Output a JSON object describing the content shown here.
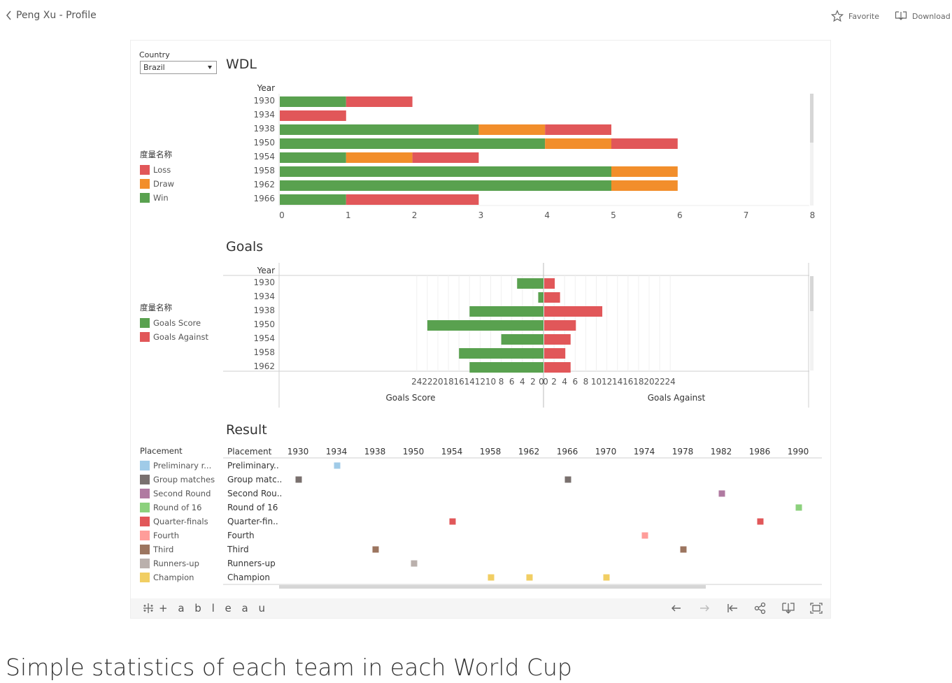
{
  "header": {
    "back_label": "Peng Xu - Profile",
    "favorite_label": "Favorite",
    "download_label": "Download"
  },
  "page_title": "Simple statistics of each team in each World Cup",
  "filter": {
    "label": "Country",
    "value": "Brazil"
  },
  "legends": {
    "wdl": {
      "title": "度量名称",
      "items": [
        {
          "label": "Loss",
          "color": "#e15759"
        },
        {
          "label": "Draw",
          "color": "#f28e2b"
        },
        {
          "label": "Win",
          "color": "#59a14f"
        }
      ]
    },
    "goals": {
      "title": "度量名称",
      "items": [
        {
          "label": "Goals Score",
          "color": "#59a14f"
        },
        {
          "label": "Goals Against",
          "color": "#e15759"
        }
      ]
    },
    "placement": {
      "title": "Placement",
      "items": [
        {
          "label": "Preliminary r...",
          "color": "#a0cbe8"
        },
        {
          "label": "Group matches",
          "color": "#79706e"
        },
        {
          "label": "Second Round",
          "color": "#b07aa1"
        },
        {
          "label": "Round of 16",
          "color": "#8cd17d"
        },
        {
          "label": "Quarter-finals",
          "color": "#e15759"
        },
        {
          "label": "Fourth",
          "color": "#ff9d9a"
        },
        {
          "label": "Third",
          "color": "#9c755f"
        },
        {
          "label": "Runners-up",
          "color": "#bab0ac"
        },
        {
          "label": "Champion",
          "color": "#f1ce63"
        }
      ]
    }
  },
  "toolbar": {
    "logo_text": "+ a b l e a u"
  },
  "chart_data": [
    {
      "type": "bar",
      "title": "WDL",
      "orientation": "horizontal-stacked",
      "y_header": "Year",
      "categories": [
        "1930",
        "1934",
        "1938",
        "1950",
        "1954",
        "1958",
        "1962",
        "1966"
      ],
      "series": [
        {
          "name": "Win",
          "values": [
            1,
            0,
            3,
            4,
            1,
            5,
            5,
            1
          ],
          "color": "#59a14f"
        },
        {
          "name": "Draw",
          "values": [
            0,
            0,
            1,
            1,
            1,
            1,
            1,
            0
          ],
          "color": "#f28e2b"
        },
        {
          "name": "Loss",
          "values": [
            1,
            1,
            1,
            1,
            1,
            0,
            0,
            2
          ],
          "color": "#e15759"
        }
      ],
      "xlim": [
        0,
        8
      ],
      "xticks": [
        "0",
        "1",
        "2",
        "3",
        "4",
        "5",
        "6",
        "7",
        "8"
      ]
    },
    {
      "type": "bar",
      "title": "Goals",
      "orientation": "horizontal-diverging",
      "y_header": "Year",
      "categories": [
        "1930",
        "1934",
        "1938",
        "1950",
        "1954",
        "1958",
        "1962"
      ],
      "series": [
        {
          "name": "Goals Score",
          "values": [
            5,
            1,
            14,
            22,
            8,
            16,
            14
          ],
          "color": "#59a14f"
        },
        {
          "name": "Goals Against",
          "values": [
            2,
            3,
            11,
            6,
            5,
            4,
            5
          ],
          "color": "#e15759"
        }
      ],
      "left_axis": {
        "label": "Goals Score",
        "ticks": [
          "24",
          "22",
          "20",
          "18",
          "16",
          "14",
          "12",
          "10",
          "8",
          "6",
          "4",
          "2",
          "0"
        ]
      },
      "right_axis": {
        "label": "Goals Against",
        "ticks": [
          "0",
          "2",
          "4",
          "6",
          "8",
          "10",
          "12",
          "14",
          "16",
          "18",
          "20",
          "22",
          "24"
        ]
      },
      "xlim": [
        0,
        25
      ]
    },
    {
      "type": "scatter",
      "title": "Result",
      "row_header": "Placement",
      "rows": [
        "Preliminary..",
        "Group matc..",
        "Second Rou..",
        "Round of 16",
        "Quarter-fin..",
        "Fourth",
        "Third",
        "Runners-up",
        "Champion"
      ],
      "columns": [
        "1930",
        "1934",
        "1938",
        "1950",
        "1954",
        "1958",
        "1962",
        "1966",
        "1970",
        "1974",
        "1978",
        "1982",
        "1986",
        "1990"
      ],
      "points": [
        {
          "row": "Preliminary..",
          "year": "1934"
        },
        {
          "row": "Group matc..",
          "year": "1930"
        },
        {
          "row": "Group matc..",
          "year": "1966"
        },
        {
          "row": "Second Rou..",
          "year": "1982"
        },
        {
          "row": "Round of 16",
          "year": "1990"
        },
        {
          "row": "Quarter-fin..",
          "year": "1954"
        },
        {
          "row": "Quarter-fin..",
          "year": "1986"
        },
        {
          "row": "Fourth",
          "year": "1974"
        },
        {
          "row": "Third",
          "year": "1938"
        },
        {
          "row": "Third",
          "year": "1978"
        },
        {
          "row": "Runners-up",
          "year": "1950"
        },
        {
          "row": "Champion",
          "year": "1958"
        },
        {
          "row": "Champion",
          "year": "1962"
        },
        {
          "row": "Champion",
          "year": "1970"
        }
      ]
    }
  ]
}
